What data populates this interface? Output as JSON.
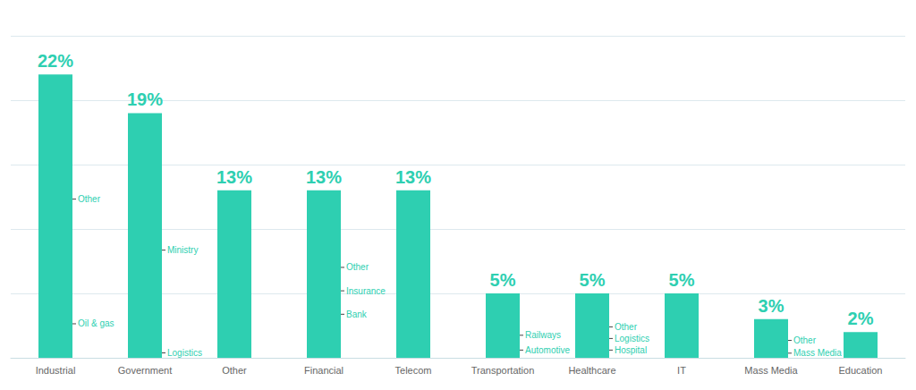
{
  "chart_data": {
    "type": "bar",
    "categories": [
      "Industrial",
      "Government",
      "Other",
      "Financial",
      "Telecom",
      "Transportation",
      "Healthcare",
      "IT",
      "Mass Media",
      "Education"
    ],
    "values": [
      22,
      19,
      13,
      13,
      13,
      5,
      5,
      5,
      3,
      2
    ],
    "value_labels": [
      "22%",
      "19%",
      "13%",
      "13%",
      "13%",
      "5%",
      "5%",
      "5%",
      "3%",
      "2%"
    ],
    "data_labels": true,
    "color": "#2ecfb1",
    "ylim": [
      0,
      25
    ],
    "yticks": [
      0,
      5,
      10,
      15,
      20,
      25
    ],
    "grid": true,
    "tick_labels": "x",
    "annotations": [
      {
        "text": "Oil & gas",
        "x": "Industrial",
        "y": 2.64
      },
      {
        "text": "Other",
        "x": "Industrial",
        "y": 12.32
      },
      {
        "text": "Logistics",
        "x": "Government",
        "y": 0.38
      },
      {
        "text": "Ministry",
        "x": "Government",
        "y": 8.36
      },
      {
        "text": "Bank",
        "x": "Financial",
        "y": 3.38
      },
      {
        "text": "Insurance",
        "x": "Financial",
        "y": 5.2
      },
      {
        "text": "Other",
        "x": "Financial",
        "y": 7.02
      },
      {
        "text": "Automotive",
        "x": "Transportation",
        "y": 0.6
      },
      {
        "text": "Railways",
        "x": "Transportation",
        "y": 1.75
      },
      {
        "text": "Hospital",
        "x": "Healthcare",
        "y": 0.6
      },
      {
        "text": "Logistics",
        "x": "Healthcare",
        "y": 1.5
      },
      {
        "text": "Other",
        "x": "Healthcare",
        "y": 2.4
      },
      {
        "text": "Mass Media",
        "x": "Mass Media",
        "y": 0.36
      },
      {
        "text": "Other",
        "x": "Mass Media",
        "y": 1.35
      }
    ]
  }
}
